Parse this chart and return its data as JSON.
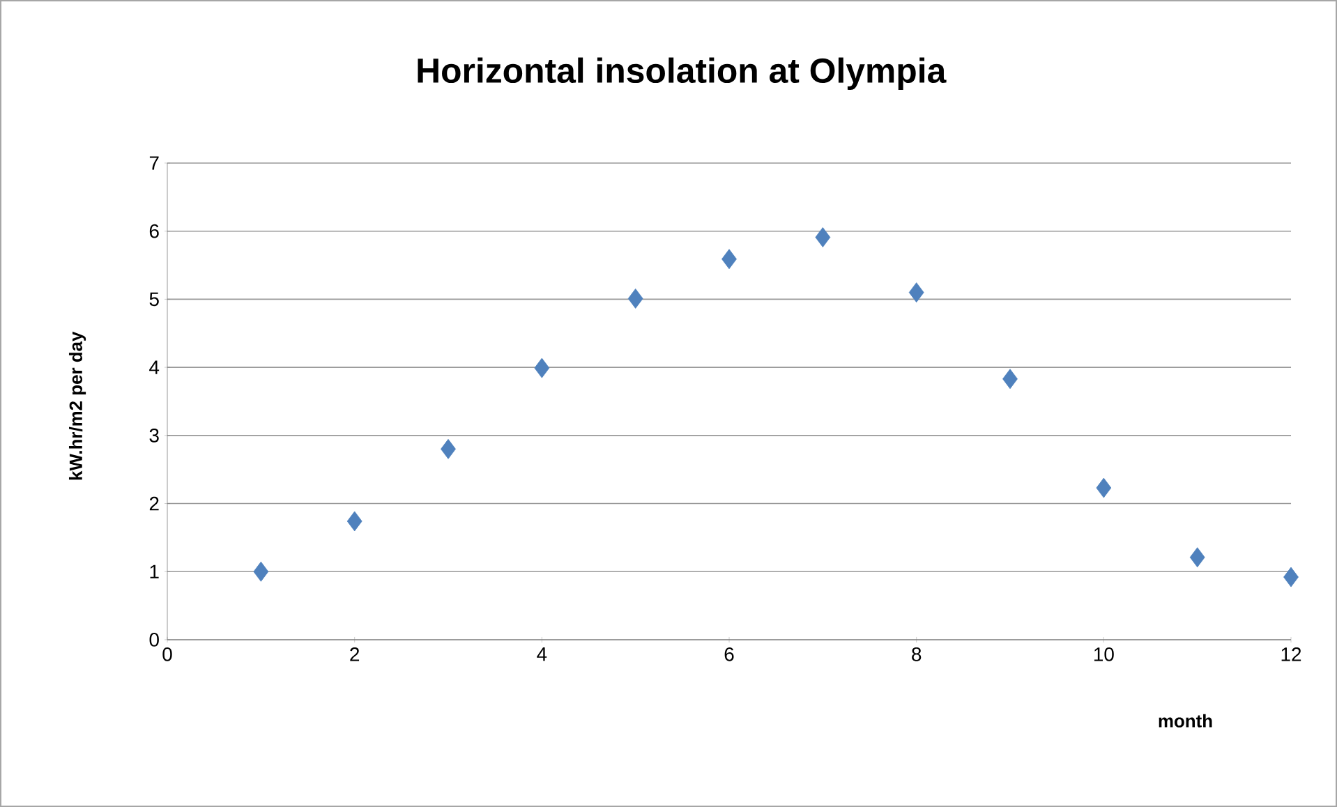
{
  "chart_data": {
    "type": "scatter",
    "title": "Horizontal insolation at Olympia",
    "xlabel": "month",
    "ylabel": "kW.hr/m2 per day",
    "x": [
      1,
      2,
      3,
      4,
      5,
      6,
      7,
      8,
      9,
      10,
      11,
      12
    ],
    "values": [
      1.0,
      1.74,
      2.8,
      3.99,
      5.01,
      5.59,
      5.91,
      5.1,
      3.83,
      2.23,
      1.21,
      0.92
    ],
    "color": "#4f81bd",
    "marker": "diamond",
    "xlim": [
      0,
      12
    ],
    "xticks": [
      0,
      2,
      4,
      6,
      8,
      10,
      12
    ],
    "ylim": [
      0,
      7
    ],
    "yticks": [
      0,
      1,
      2,
      3,
      4,
      5,
      6,
      7
    ],
    "grid": "y"
  }
}
